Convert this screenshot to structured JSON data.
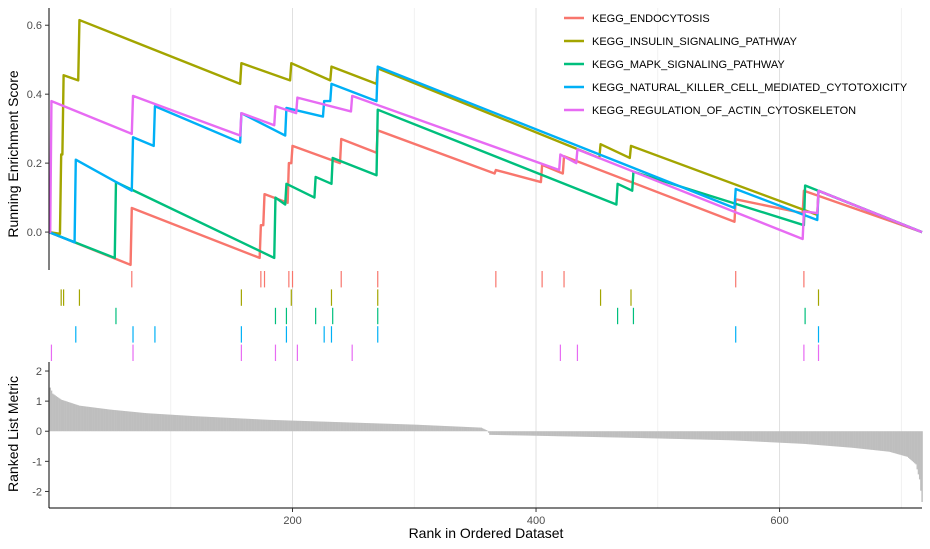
{
  "chart_data": {
    "type": "line",
    "xlabel": "Rank in Ordered Dataset",
    "x_ticks": [
      200,
      400,
      600
    ],
    "xlim": [
      0,
      717
    ],
    "top_panel": {
      "ylabel": "Running Enrichment Score",
      "y_ticks": [
        0.0,
        0.2,
        0.4,
        0.6
      ],
      "y_tick_labels": [
        "0.0",
        "0.2",
        "0.4",
        "0.6"
      ],
      "ylim": [
        -0.11,
        0.65
      ]
    },
    "bottom_panel": {
      "ylabel": "Ranked List Metric",
      "y_ticks": [
        2,
        1,
        0,
        -1,
        -2
      ],
      "y_tick_labels": [
        "2",
        "1",
        "0",
        "-1",
        "-2"
      ],
      "ylim": [
        -2.55,
        2.3
      ],
      "metric_anchors": [
        [
          1,
          1.45
        ],
        [
          3,
          1.25
        ],
        [
          10,
          1.05
        ],
        [
          25,
          0.85
        ],
        [
          50,
          0.72
        ],
        [
          80,
          0.6
        ],
        [
          120,
          0.5
        ],
        [
          180,
          0.38
        ],
        [
          240,
          0.3
        ],
        [
          300,
          0.22
        ],
        [
          355,
          0.12
        ],
        [
          360,
          0.02
        ],
        [
          362,
          -0.12
        ],
        [
          400,
          -0.15
        ],
        [
          480,
          -0.22
        ],
        [
          560,
          -0.3
        ],
        [
          620,
          -0.42
        ],
        [
          660,
          -0.55
        ],
        [
          690,
          -0.68
        ],
        [
          705,
          -0.85
        ],
        [
          712,
          -1.1
        ],
        [
          715,
          -1.6
        ],
        [
          717,
          -2.35
        ]
      ]
    },
    "legend_position": "top-right",
    "grid": "vertical",
    "series": [
      {
        "name": "KEGG_ENDOCYTOSIS",
        "color": "#F8766D",
        "hits": [
          68,
          174,
          177,
          197,
          200,
          240,
          270,
          367,
          405,
          423,
          564,
          620
        ],
        "points": [
          [
            0,
            0.0
          ],
          [
            67,
            -0.095
          ],
          [
            68,
            0.07
          ],
          [
            173,
            -0.075
          ],
          [
            174,
            0.02
          ],
          [
            176,
            0.02
          ],
          [
            177,
            0.11
          ],
          [
            196,
            0.085
          ],
          [
            197,
            0.2
          ],
          [
            199,
            0.2
          ],
          [
            200,
            0.25
          ],
          [
            239,
            0.2
          ],
          [
            240,
            0.27
          ],
          [
            269,
            0.23
          ],
          [
            270,
            0.295
          ],
          [
            366,
            0.17
          ],
          [
            367,
            0.18
          ],
          [
            404,
            0.145
          ],
          [
            405,
            0.195
          ],
          [
            422,
            0.17
          ],
          [
            423,
            0.22
          ],
          [
            563,
            0.03
          ],
          [
            564,
            0.095
          ],
          [
            619,
            0.055
          ],
          [
            620,
            0.12
          ],
          [
            717,
            0.0
          ]
        ]
      },
      {
        "name": "KEGG_INSULIN_SIGNALING_PATHWAY",
        "color": "#A3A500",
        "hits": [
          10,
          12,
          25,
          158,
          199,
          232,
          270,
          453,
          478,
          632
        ],
        "points": [
          [
            0,
            0.0
          ],
          [
            9,
            -0.005
          ],
          [
            10,
            0.225
          ],
          [
            11,
            0.225
          ],
          [
            12,
            0.455
          ],
          [
            24,
            0.44
          ],
          [
            25,
            0.615
          ],
          [
            157,
            0.43
          ],
          [
            158,
            0.49
          ],
          [
            198,
            0.44
          ],
          [
            199,
            0.49
          ],
          [
            231,
            0.44
          ],
          [
            232,
            0.48
          ],
          [
            269,
            0.43
          ],
          [
            270,
            0.475
          ],
          [
            452,
            0.215
          ],
          [
            453,
            0.255
          ],
          [
            477,
            0.215
          ],
          [
            478,
            0.25
          ],
          [
            631,
            0.05
          ],
          [
            632,
            0.12
          ],
          [
            717,
            0.0
          ]
        ]
      },
      {
        "name": "KEGG_MAPK_SIGNALING_PATHWAY",
        "color": "#00BF7D",
        "hits": [
          55,
          186,
          195,
          219,
          233,
          270,
          467,
          480,
          621
        ],
        "points": [
          [
            0,
            0.0
          ],
          [
            54,
            -0.075
          ],
          [
            55,
            0.145
          ],
          [
            185,
            -0.075
          ],
          [
            186,
            0.1
          ],
          [
            194,
            0.08
          ],
          [
            195,
            0.14
          ],
          [
            218,
            0.1
          ],
          [
            219,
            0.16
          ],
          [
            232,
            0.14
          ],
          [
            233,
            0.215
          ],
          [
            269,
            0.165
          ],
          [
            270,
            0.355
          ],
          [
            466,
            0.08
          ],
          [
            467,
            0.14
          ],
          [
            479,
            0.12
          ],
          [
            480,
            0.175
          ],
          [
            620,
            0.02
          ],
          [
            621,
            0.135
          ],
          [
            717,
            0.0
          ]
        ]
      },
      {
        "name": "KEGG_NATURAL_KILLER_CELL_MEDIATED_CYTOTOXICITY",
        "color": "#00B0F6",
        "hits": [
          22,
          69,
          87,
          158,
          195,
          226,
          232,
          270,
          564,
          632
        ],
        "points": [
          [
            0,
            0.0
          ],
          [
            21,
            -0.03
          ],
          [
            22,
            0.21
          ],
          [
            68,
            0.12
          ],
          [
            69,
            0.275
          ],
          [
            86,
            0.25
          ],
          [
            87,
            0.365
          ],
          [
            157,
            0.26
          ],
          [
            158,
            0.345
          ],
          [
            194,
            0.28
          ],
          [
            195,
            0.36
          ],
          [
            225,
            0.335
          ],
          [
            226,
            0.38
          ],
          [
            231,
            0.38
          ],
          [
            232,
            0.43
          ],
          [
            269,
            0.38
          ],
          [
            270,
            0.48
          ],
          [
            563,
            0.07
          ],
          [
            564,
            0.125
          ],
          [
            631,
            0.035
          ],
          [
            632,
            0.12
          ],
          [
            717,
            0.0
          ]
        ]
      },
      {
        "name": "KEGG_REGULATION_OF_ACTIN_CYTOSKELETON",
        "color": "#E76BF3",
        "hits": [
          2,
          69,
          158,
          186,
          204,
          249,
          420,
          434,
          620,
          632
        ],
        "points": [
          [
            0,
            0.0
          ],
          [
            1,
            0.0
          ],
          [
            2,
            0.38
          ],
          [
            68,
            0.285
          ],
          [
            69,
            0.395
          ],
          [
            157,
            0.28
          ],
          [
            158,
            0.345
          ],
          [
            185,
            0.31
          ],
          [
            186,
            0.365
          ],
          [
            203,
            0.345
          ],
          [
            204,
            0.39
          ],
          [
            248,
            0.35
          ],
          [
            249,
            0.395
          ],
          [
            419,
            0.18
          ],
          [
            420,
            0.225
          ],
          [
            433,
            0.2
          ],
          [
            434,
            0.24
          ],
          [
            619,
            -0.02
          ],
          [
            620,
            0.06
          ],
          [
            631,
            0.055
          ],
          [
            632,
            0.12
          ],
          [
            717,
            0.0
          ]
        ]
      }
    ]
  }
}
